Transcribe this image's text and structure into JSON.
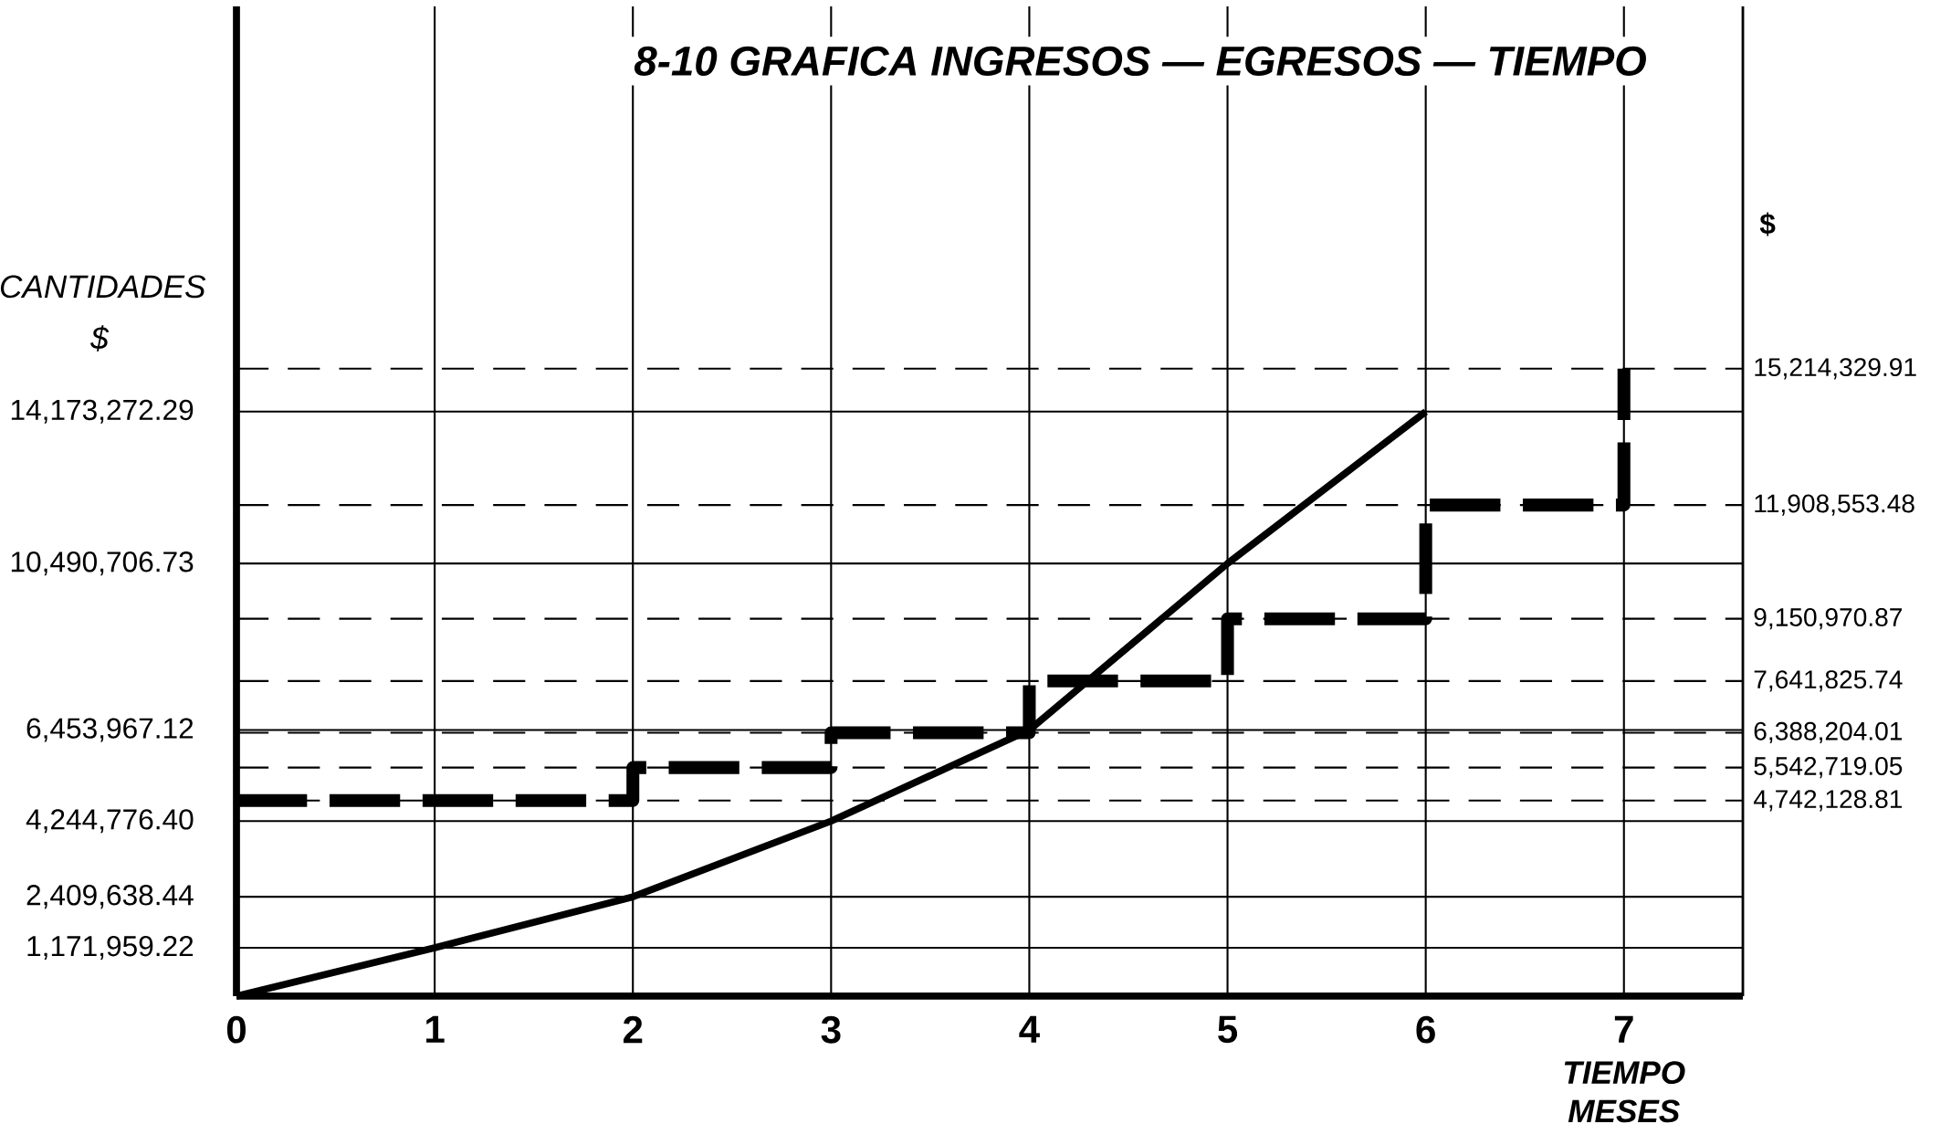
{
  "chart_data": {
    "type": "line",
    "title": "8-10 GRAFICA  INGRESOS — EGRESOS — TIEMPO",
    "xlabel": "TIEMPO MESES",
    "ylabel": "CANTIDADES $",
    "y2label": "$",
    "xlim": [
      0,
      7.6
    ],
    "xticks": [
      0,
      1,
      2,
      3,
      4,
      5,
      6,
      7
    ],
    "ylim": [
      0,
      24000000
    ],
    "yticks": [
      {
        "value": 1171959.22,
        "label": "1,171,959.22"
      },
      {
        "value": 2409638.44,
        "label": "2,409,638.44"
      },
      {
        "value": 4244776.4,
        "label": "4,244,776.40"
      },
      {
        "value": 6453967.12,
        "label": "6,453,967.12"
      },
      {
        "value": 10490706.73,
        "label": "10,490,706.73"
      },
      {
        "value": 14173272.29,
        "label": "14,173,272.29"
      }
    ],
    "y2lim": [
      0,
      24000000
    ],
    "y2ticks": [
      {
        "value": 4742128.81,
        "label": "4,742,128.81"
      },
      {
        "value": 5542719.05,
        "label": "5,542,719.05"
      },
      {
        "value": 6388204.01,
        "label": "6,388,204.01"
      },
      {
        "value": 7641825.74,
        "label": "7,641,825.74"
      },
      {
        "value": 9150970.87,
        "label": "9,150,970.87"
      },
      {
        "value": 11908553.48,
        "label": "11,908,553.48"
      },
      {
        "value": 15214329.91,
        "label": "15,214,329.91"
      }
    ],
    "grid": true,
    "marker": "none",
    "series": [
      {
        "color": "#000000",
        "line_style": "solid",
        "x": [
          0,
          1,
          2,
          3,
          4,
          5,
          6
        ],
        "values": [
          0,
          1171959.22,
          2409638.44,
          4244776.4,
          6453967.12,
          10490706.73,
          14173272.29
        ]
      },
      {
        "type": "step",
        "color": "#000000",
        "line_style": "dashed",
        "x": [
          0,
          2,
          3,
          4,
          5,
          6,
          7
        ],
        "values": [
          4742128.81,
          5542719.05,
          6388204.01,
          7641825.74,
          9150970.87,
          11908553.48,
          15214329.91
        ]
      }
    ]
  }
}
